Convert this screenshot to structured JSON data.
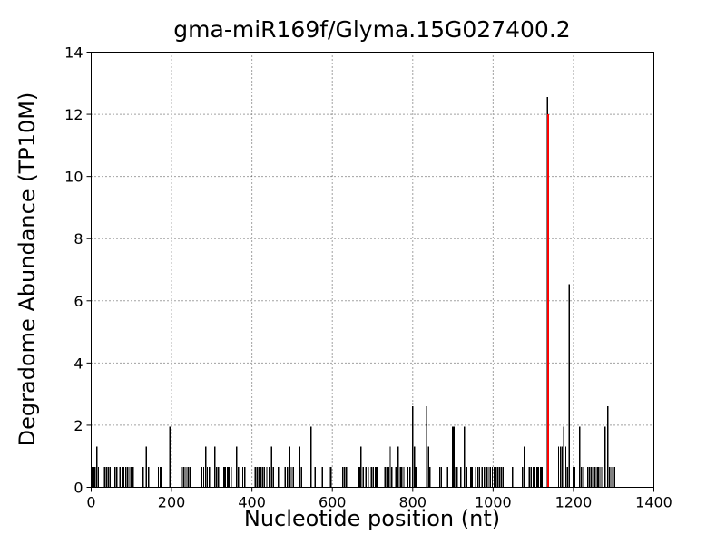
{
  "chart_data": {
    "type": "bar",
    "title": "gma-miR169f/Glyma.15G027400.2",
    "xlabel": "Nucleotide position (nt)",
    "ylabel": "Degradome Abundance (TP10M)",
    "xlim": [
      0,
      1400
    ],
    "ylim": [
      0,
      14
    ],
    "xticks": [
      0,
      200,
      400,
      600,
      800,
      1000,
      1200,
      1400
    ],
    "yticks": [
      0,
      2,
      4,
      6,
      8,
      10,
      12,
      14
    ],
    "grid": "on",
    "grid_style": "dotted",
    "grid_color": "#444444",
    "background_color": "#ffffff",
    "axis_color": "#000000",
    "bar_color": "#000000",
    "highlight": {
      "x": 1137,
      "height": 12.0,
      "color": "#ff0000"
    },
    "bars": [
      [
        2,
        0.65
      ],
      [
        6,
        0.65
      ],
      [
        10,
        0.65
      ],
      [
        14,
        1.31
      ],
      [
        18,
        0.65
      ],
      [
        33,
        0.65
      ],
      [
        38,
        0.65
      ],
      [
        42,
        0.65
      ],
      [
        47,
        0.65
      ],
      [
        59,
        0.65
      ],
      [
        64,
        0.65
      ],
      [
        72,
        0.65
      ],
      [
        77,
        0.65
      ],
      [
        81,
        0.65
      ],
      [
        86,
        0.65
      ],
      [
        91,
        0.65
      ],
      [
        96,
        0.65
      ],
      [
        100,
        0.65
      ],
      [
        104,
        0.65
      ],
      [
        129,
        0.65
      ],
      [
        137,
        1.31
      ],
      [
        143,
        0.65
      ],
      [
        167,
        0.65
      ],
      [
        172,
        0.65
      ],
      [
        176,
        0.65
      ],
      [
        196,
        1.96
      ],
      [
        227,
        0.65
      ],
      [
        231,
        0.65
      ],
      [
        236,
        0.65
      ],
      [
        241,
        0.65
      ],
      [
        246,
        0.65
      ],
      [
        275,
        0.65
      ],
      [
        280,
        0.65
      ],
      [
        285,
        1.31
      ],
      [
        289,
        0.65
      ],
      [
        294,
        0.65
      ],
      [
        308,
        1.31
      ],
      [
        312,
        0.65
      ],
      [
        317,
        0.65
      ],
      [
        330,
        0.65
      ],
      [
        334,
        0.65
      ],
      [
        339,
        0.65
      ],
      [
        343,
        0.65
      ],
      [
        348,
        0.65
      ],
      [
        362,
        1.31
      ],
      [
        366,
        0.65
      ],
      [
        377,
        0.65
      ],
      [
        382,
        0.65
      ],
      [
        408,
        0.65
      ],
      [
        413,
        0.65
      ],
      [
        417,
        0.65
      ],
      [
        422,
        0.65
      ],
      [
        426,
        0.65
      ],
      [
        431,
        0.65
      ],
      [
        437,
        0.65
      ],
      [
        443,
        0.65
      ],
      [
        449,
        1.31
      ],
      [
        453,
        0.65
      ],
      [
        466,
        0.65
      ],
      [
        483,
        0.65
      ],
      [
        488,
        0.65
      ],
      [
        494,
        1.31
      ],
      [
        498,
        0.65
      ],
      [
        503,
        0.65
      ],
      [
        519,
        1.31
      ],
      [
        523,
        0.65
      ],
      [
        547,
        1.96
      ],
      [
        557,
        0.65
      ],
      [
        575,
        0.65
      ],
      [
        592,
        0.65
      ],
      [
        597,
        0.65
      ],
      [
        626,
        0.65
      ],
      [
        631,
        0.65
      ],
      [
        635,
        0.65
      ],
      [
        664,
        0.65
      ],
      [
        668,
        0.65
      ],
      [
        671,
        1.31
      ],
      [
        677,
        0.65
      ],
      [
        684,
        0.65
      ],
      [
        689,
        0.65
      ],
      [
        697,
        0.65
      ],
      [
        702,
        0.65
      ],
      [
        707,
        0.65
      ],
      [
        711,
        0.65
      ],
      [
        731,
        0.65
      ],
      [
        736,
        0.65
      ],
      [
        740,
        0.65
      ],
      [
        744,
        1.31
      ],
      [
        748,
        0.65
      ],
      [
        758,
        0.65
      ],
      [
        764,
        1.31
      ],
      [
        769,
        0.65
      ],
      [
        773,
        0.65
      ],
      [
        778,
        0.65
      ],
      [
        788,
        0.65
      ],
      [
        793,
        0.65
      ],
      [
        800,
        2.61
      ],
      [
        804,
        1.31
      ],
      [
        808,
        0.65
      ],
      [
        835,
        2.61
      ],
      [
        839,
        1.31
      ],
      [
        843,
        0.65
      ],
      [
        867,
        0.65
      ],
      [
        871,
        0.65
      ],
      [
        883,
        0.65
      ],
      [
        887,
        0.65
      ],
      [
        899,
        1.96
      ],
      [
        903,
        1.96
      ],
      [
        907,
        0.65
      ],
      [
        911,
        0.65
      ],
      [
        920,
        0.65
      ],
      [
        929,
        1.96
      ],
      [
        934,
        0.65
      ],
      [
        944,
        0.65
      ],
      [
        948,
        0.65
      ],
      [
        957,
        0.65
      ],
      [
        962,
        0.65
      ],
      [
        966,
        0.65
      ],
      [
        973,
        0.65
      ],
      [
        978,
        0.65
      ],
      [
        984,
        0.65
      ],
      [
        988,
        0.65
      ],
      [
        993,
        0.65
      ],
      [
        998,
        0.65
      ],
      [
        1003,
        0.65
      ],
      [
        1007,
        0.65
      ],
      [
        1011,
        0.65
      ],
      [
        1016,
        0.65
      ],
      [
        1020,
        0.65
      ],
      [
        1025,
        0.65
      ],
      [
        1048,
        0.65
      ],
      [
        1073,
        0.65
      ],
      [
        1078,
        1.31
      ],
      [
        1090,
        0.65
      ],
      [
        1095,
        0.65
      ],
      [
        1100,
        0.65
      ],
      [
        1104,
        0.65
      ],
      [
        1109,
        0.65
      ],
      [
        1113,
        0.65
      ],
      [
        1118,
        0.65
      ],
      [
        1122,
        0.65
      ],
      [
        1135,
        12.55
      ],
      [
        1163,
        1.31
      ],
      [
        1168,
        1.31
      ],
      [
        1172,
        1.31
      ],
      [
        1176,
        1.96
      ],
      [
        1181,
        1.31
      ],
      [
        1185,
        0.65
      ],
      [
        1189,
        6.53
      ],
      [
        1199,
        0.65
      ],
      [
        1203,
        0.65
      ],
      [
        1215,
        1.96
      ],
      [
        1220,
        0.65
      ],
      [
        1225,
        0.65
      ],
      [
        1236,
        0.65
      ],
      [
        1240,
        0.65
      ],
      [
        1245,
        0.65
      ],
      [
        1250,
        0.65
      ],
      [
        1254,
        0.65
      ],
      [
        1259,
        0.65
      ],
      [
        1263,
        0.65
      ],
      [
        1268,
        0.65
      ],
      [
        1273,
        0.65
      ],
      [
        1279,
        1.96
      ],
      [
        1285,
        2.61
      ],
      [
        1290,
        0.65
      ],
      [
        1295,
        0.65
      ],
      [
        1302,
        0.65
      ]
    ]
  }
}
